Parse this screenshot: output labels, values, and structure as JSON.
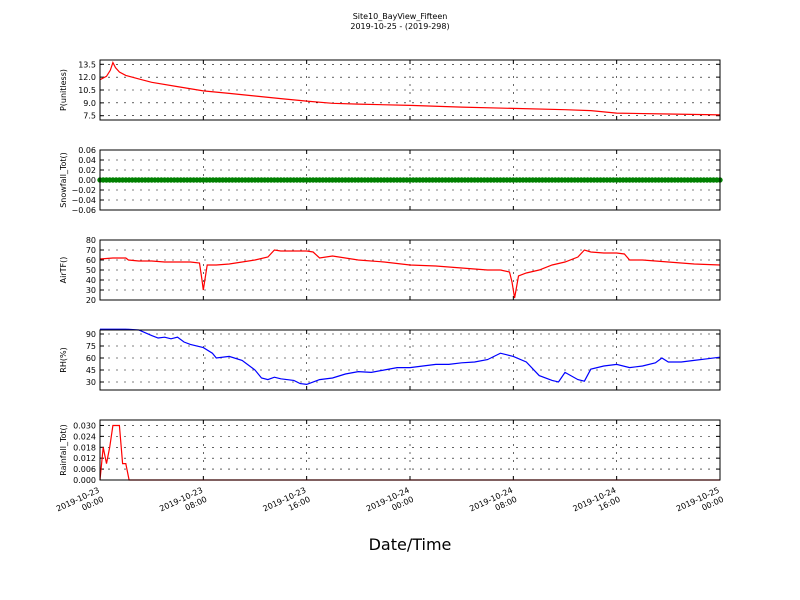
{
  "figure": {
    "title": "Site10_BayView_Fifteen",
    "subtitle": "2019-10-25 - (2019-298)",
    "xlabel": "Date/Time",
    "x_ticks": [
      {
        "l1": "2019-10-23",
        "l2": "00:00",
        "x": 0
      },
      {
        "l1": "2019-10-23",
        "l2": "08:00",
        "x": 8
      },
      {
        "l1": "2019-10-23",
        "l2": "16:00",
        "x": 16
      },
      {
        "l1": "2019-10-24",
        "l2": "00:00",
        "x": 24
      },
      {
        "l1": "2019-10-24",
        "l2": "08:00",
        "x": 32
      },
      {
        "l1": "2019-10-24",
        "l2": "16:00",
        "x": 40
      },
      {
        "l1": "2019-10-25",
        "l2": "00:00",
        "x": 48
      }
    ]
  },
  "chart_data": [
    {
      "type": "line",
      "ylabel": "P(unitless)",
      "ylim": [
        7,
        14
      ],
      "yticks": [
        "13.5",
        "12.0",
        "10.5",
        "9.0",
        "7.5"
      ],
      "xlim": [
        0,
        48
      ],
      "grid": true,
      "series": [
        {
          "color": "#ff0000",
          "x": [
            0,
            0.5,
            0.8,
            1,
            1.2,
            1.5,
            2,
            3,
            4,
            6,
            8,
            10,
            12,
            14,
            16,
            18,
            20,
            24,
            28,
            32,
            36,
            38,
            40,
            44,
            48
          ],
          "y": [
            11.7,
            12.1,
            12.8,
            13.7,
            13.1,
            12.6,
            12.2,
            11.8,
            11.4,
            10.9,
            10.4,
            10.1,
            9.8,
            9.5,
            9.2,
            8.95,
            8.85,
            8.7,
            8.5,
            8.35,
            8.2,
            8.1,
            7.8,
            7.7,
            7.6
          ]
        }
      ]
    },
    {
      "type": "scatter",
      "ylabel": "Snowfall_Tot()",
      "ylim": [
        -0.06,
        0.06
      ],
      "yticks": [
        "0.06",
        "0.04",
        "0.02",
        "0.00",
        "−0.02",
        "−0.04",
        "−0.06"
      ],
      "xlim": [
        0,
        48
      ],
      "grid": true,
      "series": [
        {
          "color": "#008000",
          "constant": 0.0,
          "n_points": 193,
          "x_start": 0,
          "x_end": 48
        }
      ]
    },
    {
      "type": "line",
      "ylabel": "AirTF()",
      "ylim": [
        20,
        80
      ],
      "yticks": [
        "80",
        "70",
        "60",
        "50",
        "40",
        "30",
        "20"
      ],
      "xlim": [
        0,
        48
      ],
      "grid": true,
      "series": [
        {
          "color": "#ff0000",
          "x": [
            0,
            1,
            2,
            2.2,
            3,
            4,
            5,
            6,
            7,
            7.7,
            7.9,
            8.0,
            8.3,
            9,
            10,
            11,
            12,
            13,
            13.5,
            14,
            15,
            16,
            16.5,
            17,
            18,
            20,
            22,
            24,
            26,
            28,
            30,
            31,
            31.7,
            31.9,
            32.1,
            32.4,
            33,
            34,
            35,
            36,
            37,
            37.5,
            38,
            39,
            40,
            40.6,
            41,
            42,
            44,
            46,
            48
          ],
          "y": [
            61,
            62,
            62,
            60,
            59,
            59,
            58,
            58,
            58,
            57,
            40,
            30,
            55,
            55,
            56,
            58,
            60,
            63,
            70,
            69,
            69,
            69,
            68,
            62,
            64,
            60,
            58,
            55,
            54,
            52,
            50,
            50,
            48,
            38,
            22,
            44,
            47,
            50,
            55,
            58,
            63,
            70,
            68,
            67,
            67,
            66,
            60,
            60,
            58,
            56,
            55
          ]
        }
      ]
    },
    {
      "type": "line",
      "ylabel": "RH(%)",
      "ylim": [
        20,
        95
      ],
      "yticks": [
        "90",
        "75",
        "60",
        "45",
        "30"
      ],
      "xlim": [
        0,
        48
      ],
      "grid": true,
      "series": [
        {
          "color": "#0000ff",
          "x": [
            0,
            1,
            2,
            3,
            4,
            4.5,
            5,
            5.5,
            6,
            6.5,
            7,
            8,
            8.7,
            9,
            10,
            11,
            12,
            12.5,
            13,
            13.5,
            14,
            15,
            15.5,
            16,
            17,
            18,
            19,
            20,
            21,
            22,
            23,
            24,
            25,
            26,
            27,
            28,
            29,
            30,
            31,
            31.5,
            32,
            33,
            34,
            35,
            35.5,
            36,
            37,
            37.5,
            38,
            39,
            40,
            41,
            42,
            43,
            43.5,
            44,
            45,
            46,
            47,
            48
          ],
          "y": [
            96,
            96,
            96,
            95,
            88,
            85,
            86,
            84,
            86,
            80,
            77,
            73,
            66,
            60,
            62,
            57,
            45,
            35,
            33,
            36,
            34,
            32,
            28,
            27,
            33,
            35,
            40,
            43,
            42,
            45,
            48,
            48,
            50,
            52,
            52,
            54,
            55,
            58,
            66,
            64,
            62,
            55,
            38,
            32,
            30,
            42,
            33,
            31,
            46,
            50,
            52,
            48,
            50,
            54,
            60,
            55,
            55,
            57,
            59,
            61
          ]
        }
      ]
    },
    {
      "type": "line",
      "ylabel": "Rainfall_Tot()",
      "ylim": [
        0,
        0.033
      ],
      "yticks": [
        "0.030",
        "0.024",
        "0.018",
        "0.012",
        "0.006",
        "0.000"
      ],
      "xlim": [
        0,
        48
      ],
      "grid": true,
      "series": [
        {
          "color": "#ff0000",
          "x": [
            0,
            0.25,
            0.5,
            0.75,
            1,
            1.25,
            1.5,
            1.75,
            2,
            2.25,
            2.5,
            48
          ],
          "y": [
            0.0,
            0.018,
            0.009,
            0.018,
            0.03,
            0.03,
            0.03,
            0.009,
            0.009,
            0.0,
            0.0,
            0.0
          ]
        }
      ]
    }
  ]
}
